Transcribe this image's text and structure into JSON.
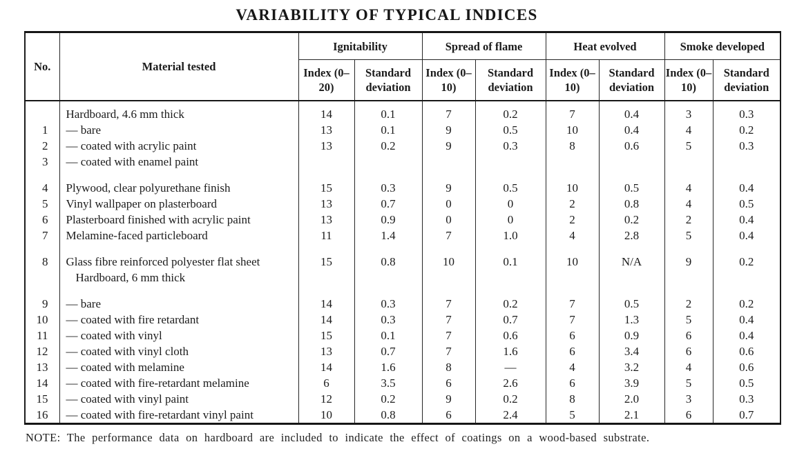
{
  "title": "VARIABILITY OF TYPICAL INDICES",
  "note": "NOTE: The performance data on hardboard are included to indicate the effect of coatings on a wood-based substrate.",
  "table": {
    "header": {
      "no": "No.",
      "material": "Material tested",
      "groups": [
        {
          "label": "Ignitability",
          "index": "Index (0–20)",
          "sd": "Standard deviation"
        },
        {
          "label": "Spread of flame",
          "index": "Index (0–10)",
          "sd": "Standard deviation"
        },
        {
          "label": "Heat evolved",
          "index": "Index (0–10)",
          "sd": "Standard deviation"
        },
        {
          "label": "Smoke developed",
          "index": "Index (0–10)",
          "sd": "Standard deviation"
        }
      ]
    },
    "sections": [
      {
        "rows": [
          {
            "no": "",
            "material": "Hardboard, 4.6 mm thick",
            "values": [
              "14",
              "0.1",
              "7",
              "0.2",
              "7",
              "0.4",
              "3",
              "0.3"
            ]
          },
          {
            "no": "1",
            "material": "— bare",
            "values": [
              "13",
              "0.1",
              "9",
              "0.5",
              "10",
              "0.4",
              "4",
              "0.2"
            ]
          },
          {
            "no": "2",
            "material": "— coated with acrylic paint",
            "values": [
              "13",
              "0.2",
              "9",
              "0.3",
              "8",
              "0.6",
              "5",
              "0.3"
            ]
          },
          {
            "no": "3",
            "material": "— coated with enamel paint",
            "values": [
              "",
              "",
              "",
              "",
              "",
              "",
              "",
              ""
            ]
          }
        ]
      },
      {
        "rows": [
          {
            "no": "4",
            "material": "Plywood, clear polyurethane finish",
            "values": [
              "15",
              "0.3",
              "9",
              "0.5",
              "10",
              "0.5",
              "4",
              "0.4"
            ]
          },
          {
            "no": "5",
            "material": "Vinyl wallpaper on plasterboard",
            "values": [
              "13",
              "0.7",
              "0",
              "0",
              "2",
              "0.8",
              "4",
              "0.5"
            ]
          },
          {
            "no": "6",
            "material": "Plasterboard finished with acrylic paint",
            "values": [
              "13",
              "0.9",
              "0",
              "0",
              "2",
              "0.2",
              "2",
              "0.4"
            ]
          },
          {
            "no": "7",
            "material": "Melamine-faced particleboard",
            "values": [
              "11",
              "1.4",
              "7",
              "1.0",
              "4",
              "2.8",
              "5",
              "0.4"
            ]
          }
        ]
      },
      {
        "rows": [
          {
            "no": "8",
            "material": "Glass fibre reinforced polyester flat sheet",
            "material_line2": "Hardboard, 6 mm thick",
            "values": [
              "15",
              "0.8",
              "10",
              "0.1",
              "10",
              "N/A",
              "9",
              "0.2"
            ]
          }
        ]
      },
      {
        "rows": [
          {
            "no": "9",
            "material": "— bare",
            "values": [
              "14",
              "0.3",
              "7",
              "0.2",
              "7",
              "0.5",
              "2",
              "0.2"
            ]
          },
          {
            "no": "10",
            "material": "— coated with fire retardant",
            "values": [
              "14",
              "0.3",
              "7",
              "0.7",
              "7",
              "1.3",
              "5",
              "0.4"
            ]
          },
          {
            "no": "11",
            "material": "— coated with vinyl",
            "values": [
              "15",
              "0.1",
              "7",
              "0.6",
              "6",
              "0.9",
              "6",
              "0.4"
            ]
          },
          {
            "no": "12",
            "material": "— coated with vinyl cloth",
            "values": [
              "13",
              "0.7",
              "7",
              "1.6",
              "6",
              "3.4",
              "6",
              "0.6"
            ]
          },
          {
            "no": "13",
            "material": "— coated with melamine",
            "values": [
              "14",
              "1.6",
              "8",
              "—",
              "4",
              "3.2",
              "4",
              "0.6"
            ]
          },
          {
            "no": "14",
            "material": "— coated with fire-retardant melamine",
            "values": [
              "6",
              "3.5",
              "6",
              "2.6",
              "6",
              "3.9",
              "5",
              "0.5"
            ]
          },
          {
            "no": "15",
            "material": "— coated with vinyl paint",
            "values": [
              "12",
              "0.2",
              "9",
              "0.2",
              "8",
              "2.0",
              "3",
              "0.3"
            ]
          },
          {
            "no": "16",
            "material": "— coated with fire-retardant vinyl paint",
            "values": [
              "10",
              "0.8",
              "6",
              "2.4",
              "5",
              "2.1",
              "6",
              "0.7"
            ]
          }
        ]
      }
    ]
  }
}
